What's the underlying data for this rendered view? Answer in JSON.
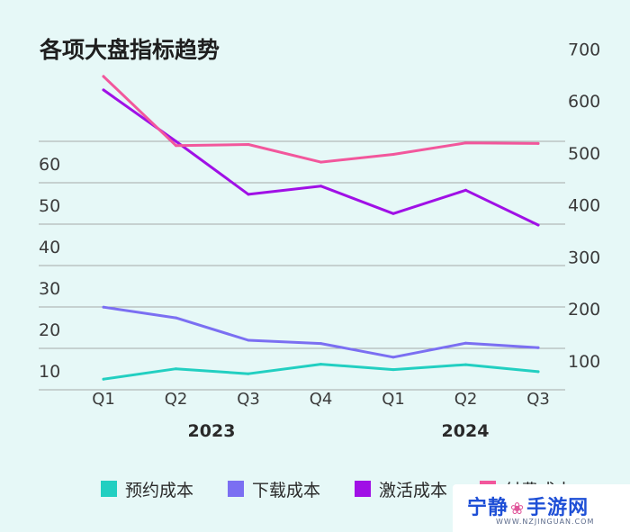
{
  "chart_data": {
    "type": "line",
    "title": "各项大盘指标趋势",
    "categories": [
      "Q1",
      "Q2",
      "Q3",
      "Q4",
      "Q1",
      "Q2",
      "Q3"
    ],
    "year_groups": [
      {
        "label": "2023",
        "span": [
          0,
          3
        ]
      },
      {
        "label": "2024",
        "span": [
          4,
          6
        ]
      }
    ],
    "left_axis": {
      "ylim": [
        0,
        60
      ],
      "ticks": [
        10,
        20,
        30,
        40,
        50,
        60
      ]
    },
    "right_axis": {
      "ylim": [
        100,
        700
      ],
      "ticks": [
        100,
        200,
        300,
        400,
        500,
        600,
        700
      ]
    },
    "series": [
      {
        "name": "预约成本",
        "color": "#22cfc1",
        "axis": "left",
        "values": [
          8,
          10.5,
          9.3,
          11.6,
          10.3,
          11.5,
          9.8
        ]
      },
      {
        "name": "下载成本",
        "color": "#7b6ff2",
        "axis": "left",
        "values": [
          25.4,
          22.8,
          17.4,
          16.6,
          13.3,
          16.7,
          15.6
        ]
      },
      {
        "name": "激活成本",
        "color": "#a010e6",
        "axis": "right",
        "values": [
          621,
          522,
          420,
          436,
          383,
          428,
          361
        ]
      },
      {
        "name": "付费成本",
        "color": "#f2579c",
        "axis": "right",
        "values": [
          647,
          514,
          516,
          482,
          497,
          519,
          518
        ]
      }
    ],
    "grid": true,
    "legend_position": "bottom"
  },
  "watermark": {
    "text_left": "宁静",
    "text_right": "手游网",
    "icon": "butterfly-icon",
    "url": "WWW.NZJINGUAN.COM"
  }
}
